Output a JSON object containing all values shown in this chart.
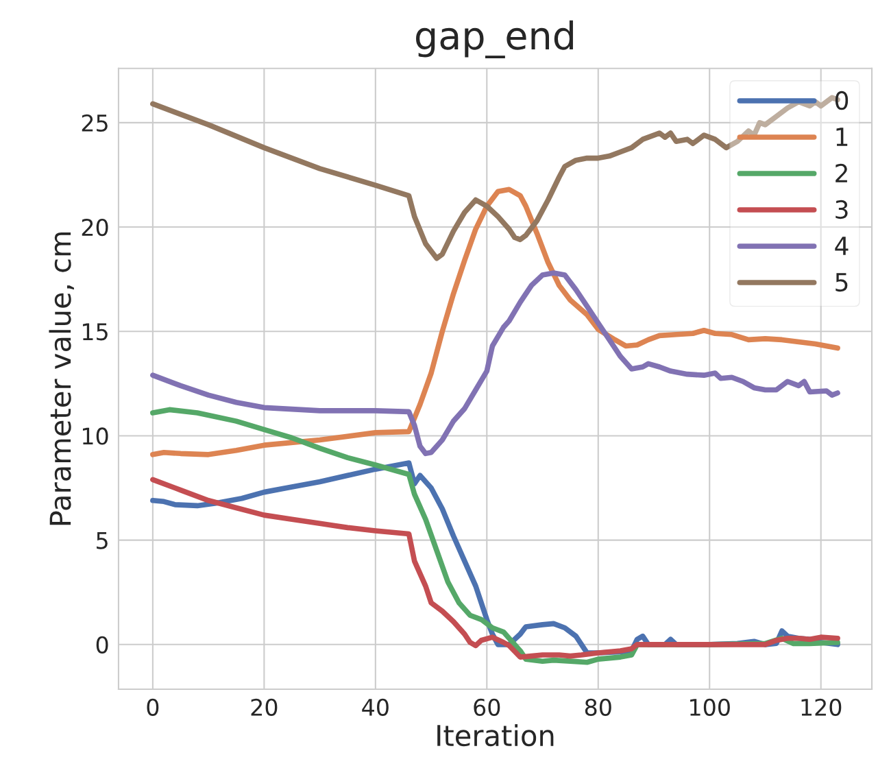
{
  "chart_data": {
    "type": "line",
    "title": "gap_end",
    "xlabel": "Iteration",
    "ylabel": "Parameter value, cm",
    "xlim": [
      -6.15,
      129.15
    ],
    "ylim": [
      -2.14,
      27.6
    ],
    "xticks": [
      0,
      20,
      40,
      60,
      80,
      100,
      120
    ],
    "yticks": [
      0,
      5,
      10,
      15,
      20,
      25
    ],
    "grid": true,
    "legend": "top right",
    "line_style": "solid",
    "marker": "none",
    "series": [
      {
        "name": "0",
        "color": "#4c72b0",
        "x": [
          0,
          2,
          4,
          8,
          12,
          16,
          20,
          25,
          30,
          35,
          40,
          46,
          47,
          48,
          50,
          52,
          54,
          56,
          58,
          59,
          60,
          61,
          62,
          64,
          66,
          67,
          70,
          72,
          74,
          76,
          78,
          80,
          84,
          86,
          87,
          88,
          89,
          92,
          93,
          94,
          100,
          105,
          108,
          110,
          112,
          113,
          114,
          116,
          118,
          120,
          123
        ],
        "values": [
          6.9,
          6.85,
          6.7,
          6.65,
          6.8,
          7.0,
          7.3,
          7.55,
          7.8,
          8.1,
          8.4,
          8.7,
          7.7,
          8.1,
          7.5,
          6.5,
          5.2,
          4.0,
          2.8,
          2.0,
          1.2,
          0.5,
          0.0,
          0.0,
          0.5,
          0.85,
          0.95,
          1.0,
          0.8,
          0.4,
          -0.4,
          -0.4,
          -0.35,
          -0.3,
          0.25,
          0.4,
          0.0,
          0.0,
          0.25,
          0.0,
          0.0,
          0.05,
          0.15,
          0.0,
          0.05,
          0.65,
          0.4,
          0.3,
          0.25,
          0.1,
          0.0
        ]
      },
      {
        "name": "1",
        "color": "#dd8452",
        "x": [
          0,
          2,
          5,
          10,
          15,
          20,
          30,
          40,
          46,
          48,
          50,
          52,
          54,
          56,
          58,
          60,
          62,
          64,
          66,
          67,
          69,
          71,
          73,
          75,
          78,
          80,
          83,
          85,
          87,
          89,
          91,
          94,
          97,
          99,
          101,
          104,
          107,
          110,
          113,
          116,
          119,
          123
        ],
        "values": [
          9.1,
          9.2,
          9.15,
          9.1,
          9.3,
          9.55,
          9.8,
          10.15,
          10.2,
          11.5,
          13.0,
          15.0,
          16.8,
          18.4,
          19.9,
          21.0,
          21.7,
          21.8,
          21.5,
          21.0,
          19.7,
          18.3,
          17.2,
          16.5,
          15.8,
          15.1,
          14.6,
          14.3,
          14.35,
          14.6,
          14.8,
          14.85,
          14.9,
          15.05,
          14.9,
          14.85,
          14.6,
          14.65,
          14.6,
          14.5,
          14.4,
          14.2
        ]
      },
      {
        "name": "2",
        "color": "#55a868",
        "x": [
          0,
          3,
          8,
          15,
          20,
          25,
          30,
          35,
          40,
          46,
          47,
          49,
          51,
          53,
          55,
          57,
          59,
          61,
          63,
          64,
          66,
          67,
          70,
          72,
          75,
          78,
          80,
          84,
          86,
          87,
          90,
          100,
          110,
          113,
          115,
          118,
          123
        ],
        "values": [
          11.1,
          11.25,
          11.1,
          10.7,
          10.3,
          9.9,
          9.4,
          8.95,
          8.6,
          8.15,
          7.2,
          6.0,
          4.5,
          3.0,
          2.0,
          1.4,
          1.2,
          0.8,
          0.6,
          0.3,
          -0.3,
          -0.7,
          -0.8,
          -0.75,
          -0.8,
          -0.85,
          -0.7,
          -0.6,
          -0.5,
          0.0,
          0.0,
          0.0,
          0.05,
          0.3,
          0.05,
          0.05,
          0.1
        ]
      },
      {
        "name": "3",
        "color": "#c44e52",
        "x": [
          0,
          5,
          10,
          15,
          20,
          25,
          30,
          35,
          40,
          46,
          47,
          49,
          50,
          52,
          54,
          56,
          57,
          58,
          59,
          61,
          63,
          64,
          66,
          68,
          70,
          73,
          75,
          77,
          80,
          84,
          86,
          87,
          90,
          100,
          110,
          112,
          114,
          116,
          118,
          120,
          123
        ],
        "values": [
          7.9,
          7.4,
          6.9,
          6.55,
          6.2,
          6.0,
          5.8,
          5.6,
          5.45,
          5.3,
          4.0,
          2.8,
          2.0,
          1.6,
          1.1,
          0.5,
          0.1,
          -0.05,
          0.2,
          0.35,
          0.1,
          -0.05,
          -0.6,
          -0.55,
          -0.5,
          -0.5,
          -0.55,
          -0.5,
          -0.4,
          -0.3,
          -0.2,
          0.0,
          0.0,
          0.0,
          0.0,
          0.2,
          0.3,
          0.3,
          0.25,
          0.35,
          0.3
        ]
      },
      {
        "name": "4",
        "color": "#8172b3",
        "x": [
          0,
          5,
          10,
          15,
          20,
          30,
          40,
          46,
          47,
          48,
          49,
          50,
          52,
          54,
          56,
          58,
          60,
          61,
          63,
          64,
          66,
          68,
          70,
          72,
          74,
          76,
          78,
          80,
          82,
          84,
          86,
          88,
          89,
          91,
          93,
          96,
          99,
          101,
          102,
          104,
          106,
          108,
          110,
          112,
          114,
          116,
          117,
          118,
          121,
          122,
          123
        ],
        "values": [
          12.9,
          12.4,
          11.95,
          11.6,
          11.35,
          11.2,
          11.2,
          11.15,
          10.5,
          9.5,
          9.15,
          9.2,
          9.8,
          10.7,
          11.3,
          12.2,
          13.1,
          14.3,
          15.2,
          15.5,
          16.4,
          17.2,
          17.7,
          17.8,
          17.7,
          17.0,
          16.2,
          15.4,
          14.6,
          13.8,
          13.2,
          13.3,
          13.45,
          13.3,
          13.1,
          12.95,
          12.9,
          13.0,
          12.75,
          12.8,
          12.6,
          12.3,
          12.2,
          12.2,
          12.6,
          12.4,
          12.6,
          12.1,
          12.15,
          11.95,
          12.05
        ]
      },
      {
        "name": "5",
        "color": "#937860",
        "x": [
          0,
          10,
          20,
          30,
          40,
          46,
          47,
          49,
          51,
          52,
          54,
          56,
          58,
          60,
          62,
          64,
          65,
          66,
          67,
          69,
          71,
          73,
          74,
          76,
          78,
          80,
          82,
          84,
          86,
          88,
          90,
          91,
          92,
          93,
          94,
          96,
          97,
          99,
          101,
          103,
          105,
          107,
          108,
          109,
          110,
          112,
          114,
          116,
          118,
          119,
          120,
          122,
          123
        ],
        "values": [
          25.9,
          24.9,
          23.8,
          22.8,
          22.0,
          21.5,
          20.5,
          19.2,
          18.5,
          18.7,
          19.8,
          20.7,
          21.3,
          21.0,
          20.5,
          19.9,
          19.5,
          19.4,
          19.6,
          20.3,
          21.3,
          22.4,
          22.9,
          23.2,
          23.3,
          23.3,
          23.4,
          23.6,
          23.8,
          24.2,
          24.4,
          24.5,
          24.3,
          24.5,
          24.1,
          24.2,
          24.0,
          24.4,
          24.2,
          23.8,
          24.1,
          24.6,
          24.4,
          25.0,
          24.9,
          25.3,
          25.7,
          26.0,
          25.8,
          26.0,
          25.8,
          26.2,
          26.1
        ]
      }
    ]
  }
}
